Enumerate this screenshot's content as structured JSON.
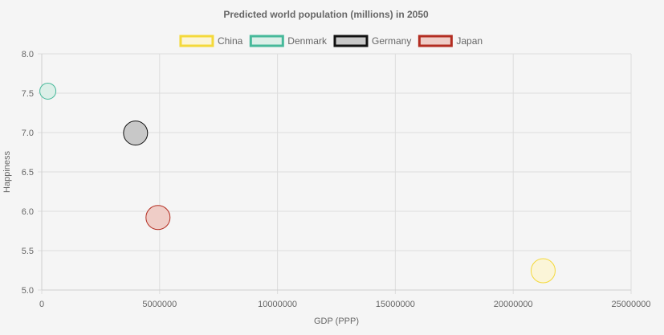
{
  "chart_data": {
    "type": "bubble",
    "title": "Predicted world population (millions) in 2050",
    "xlabel": "GDP (PPP)",
    "ylabel": "Happiness",
    "xlim": [
      0,
      25000000
    ],
    "ylim": [
      5.0,
      8.0
    ],
    "x_ticks": [
      "0",
      "5000000",
      "10000000",
      "15000000",
      "20000000",
      "25000000"
    ],
    "y_ticks": [
      "5.0",
      "5.5",
      "6.0",
      "6.5",
      "7.0",
      "7.5",
      "8.0"
    ],
    "legend_position": "top",
    "grid": true,
    "series": [
      {
        "name": "China",
        "border": "#f4d93a",
        "fill": "#fbf5d8",
        "x": 21269017,
        "y": 5.245,
        "r": 15
      },
      {
        "name": "Denmark",
        "border": "#46b99a",
        "fill": "#dcefe8",
        "x": 258702,
        "y": 7.526,
        "r": 10
      },
      {
        "name": "Germany",
        "border": "#111111",
        "fill": "#c8c8c8",
        "x": 3979083,
        "y": 6.994,
        "r": 15
      },
      {
        "name": "Japan",
        "border": "#b32d21",
        "fill": "#efcdc7",
        "x": 4931877,
        "y": 5.921,
        "r": 15
      }
    ]
  }
}
